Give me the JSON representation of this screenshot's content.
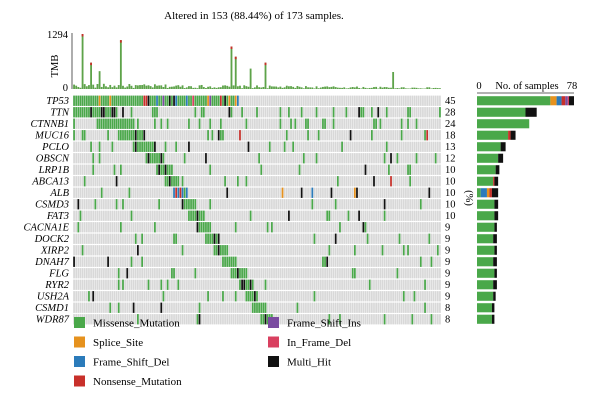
{
  "chart_data": {
    "type": "oncoplot",
    "title": "Altered in 153 (88.44%) of 173 samples.",
    "tmb": {
      "label": "TMB",
      "max": 1294,
      "min": 0,
      "highlights": [
        {
          "sample": 4,
          "value": 1294
        },
        {
          "sample": 22,
          "value": 1150
        },
        {
          "sample": 74,
          "value": 1000
        },
        {
          "sample": 76,
          "value": 760
        },
        {
          "sample": 8,
          "value": 620
        },
        {
          "sample": 90,
          "value": 620
        },
        {
          "sample": 83,
          "value": 480
        },
        {
          "sample": 12,
          "value": 420
        },
        {
          "sample": 150,
          "value": 400
        }
      ],
      "baseline": 120
    },
    "n_samples": 173,
    "genes": [
      {
        "name": "TP53",
        "pct": "45",
        "count": 78,
        "segments": [
          [
            "Missense_Mutation",
            59
          ],
          [
            "Splice_Site",
            5
          ],
          [
            "Frame_Shift_Del",
            4
          ],
          [
            "Nonsense_Mutation",
            3
          ],
          [
            "Frame_Shift_Ins",
            2
          ],
          [
            "In_Frame_Del",
            1
          ],
          [
            "Multi_Hit",
            4
          ]
        ]
      },
      {
        "name": "TTN",
        "pct": "28",
        "count": 48,
        "segments": [
          [
            "Missense_Mutation",
            39
          ],
          [
            "Multi_Hit",
            9
          ]
        ]
      },
      {
        "name": "CTNNB1",
        "pct": "24",
        "count": 42,
        "segments": [
          [
            "Missense_Mutation",
            42
          ]
        ]
      },
      {
        "name": "MUC16",
        "pct": "18",
        "count": 31,
        "segments": [
          [
            "Missense_Mutation",
            25
          ],
          [
            "Nonsense_Mutation",
            2
          ],
          [
            "Multi_Hit",
            4
          ]
        ]
      },
      {
        "name": "PCLO",
        "pct": "13",
        "count": 23,
        "segments": [
          [
            "Missense_Mutation",
            19
          ],
          [
            "Multi_Hit",
            4
          ]
        ]
      },
      {
        "name": "OBSCN",
        "pct": "12",
        "count": 21,
        "segments": [
          [
            "Missense_Mutation",
            17
          ],
          [
            "Multi_Hit",
            4
          ]
        ]
      },
      {
        "name": "LRP1B",
        "pct": "10",
        "count": 18,
        "segments": [
          [
            "Missense_Mutation",
            15
          ],
          [
            "Multi_Hit",
            3
          ]
        ]
      },
      {
        "name": "ABCA13",
        "pct": "10",
        "count": 17,
        "segments": [
          [
            "Missense_Mutation",
            13
          ],
          [
            "Nonsense_Mutation",
            1
          ],
          [
            "Multi_Hit",
            3
          ]
        ]
      },
      {
        "name": "ALB",
        "pct": "10",
        "count": 17,
        "segments": [
          [
            "Missense_Mutation",
            3
          ],
          [
            "Frame_Shift_Del",
            5
          ],
          [
            "Splice_Site",
            2
          ],
          [
            "Nonsense_Mutation",
            2
          ],
          [
            "Multi_Hit",
            5
          ]
        ]
      },
      {
        "name": "CSMD3",
        "pct": "10",
        "count": 17,
        "segments": [
          [
            "Missense_Mutation",
            14
          ],
          [
            "Multi_Hit",
            3
          ]
        ]
      },
      {
        "name": "FAT3",
        "pct": "10",
        "count": 17,
        "segments": [
          [
            "Missense_Mutation",
            14
          ],
          [
            "Multi_Hit",
            3
          ]
        ]
      },
      {
        "name": "CACNA1E",
        "pct": "9",
        "count": 16,
        "segments": [
          [
            "Missense_Mutation",
            14
          ],
          [
            "Multi_Hit",
            2
          ]
        ]
      },
      {
        "name": "DOCK2",
        "pct": "9",
        "count": 16,
        "segments": [
          [
            "Missense_Mutation",
            13
          ],
          [
            "Multi_Hit",
            3
          ]
        ]
      },
      {
        "name": "XIRP2",
        "pct": "9",
        "count": 16,
        "segments": [
          [
            "Missense_Mutation",
            14
          ],
          [
            "Multi_Hit",
            2
          ]
        ]
      },
      {
        "name": "DNAH7",
        "pct": "9",
        "count": 16,
        "segments": [
          [
            "Missense_Mutation",
            13
          ],
          [
            "Multi_Hit",
            3
          ]
        ]
      },
      {
        "name": "FLG",
        "pct": "9",
        "count": 16,
        "segments": [
          [
            "Missense_Mutation",
            14
          ],
          [
            "Multi_Hit",
            2
          ]
        ]
      },
      {
        "name": "RYR2",
        "pct": "9",
        "count": 16,
        "segments": [
          [
            "Missense_Mutation",
            13
          ],
          [
            "Multi_Hit",
            3
          ]
        ]
      },
      {
        "name": "USH2A",
        "pct": "9",
        "count": 15,
        "segments": [
          [
            "Missense_Mutation",
            13
          ],
          [
            "Multi_Hit",
            2
          ]
        ]
      },
      {
        "name": "CSMD1",
        "pct": "8",
        "count": 14,
        "segments": [
          [
            "Missense_Mutation",
            12
          ],
          [
            "Multi_Hit",
            2
          ]
        ]
      },
      {
        "name": "WDR87",
        "pct": "8",
        "count": 14,
        "segments": [
          [
            "Missense_Mutation",
            12
          ],
          [
            "Multi_Hit",
            2
          ]
        ]
      }
    ],
    "side_axis": {
      "label": "No. of samples",
      "min": "0",
      "max": "78",
      "max_value": 78
    },
    "pct_axis_label": "(%)",
    "legend": [
      {
        "label": "Missense_Mutation",
        "color": "#4aa84a"
      },
      {
        "label": "Splice_Site",
        "color": "#e6921e"
      },
      {
        "label": "Frame_Shift_Del",
        "color": "#2b7bba"
      },
      {
        "label": "Nonsense_Mutation",
        "color": "#c8302a"
      },
      {
        "label": "Frame_Shift_Ins",
        "color": "#7a4ba0"
      },
      {
        "label": "In_Frame_Del",
        "color": "#d94060"
      },
      {
        "label": "Multi_Hit",
        "color": "#111111"
      }
    ],
    "colors": {
      "background_cell": "#d8d8d8",
      "tmb_bar": "#5ea34a"
    }
  }
}
